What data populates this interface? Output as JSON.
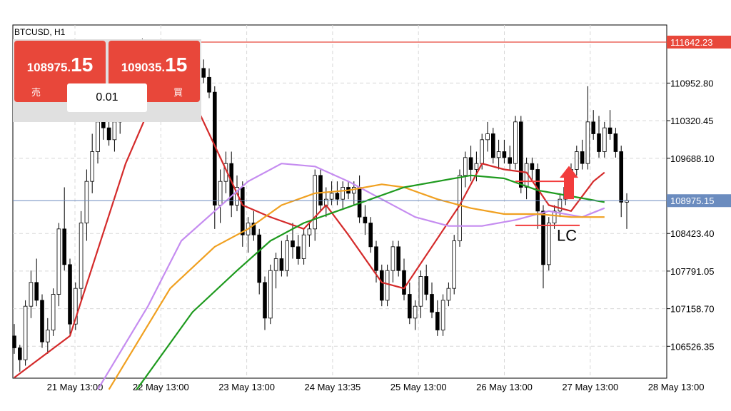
{
  "symbol": "BTCUSD, H1",
  "trade": {
    "sell_main": "108975.",
    "sell_big": "15",
    "sell_label": "売",
    "buy_main": "109035.",
    "buy_big": "15",
    "buy_label": "買",
    "lot": "0.01"
  },
  "annotation": "LC",
  "current_price": "108975.15",
  "level_price": "111642.23",
  "colors": {
    "bid_line": "#6b8cbf",
    "level_line": "#e8473a",
    "ma_red": "#d42a2a",
    "ma_green": "#1e9a1e",
    "ma_orange": "#f0a020",
    "ma_purple": "#c58cf0",
    "arrow": "#f23c3c"
  },
  "chart_data": {
    "type": "candlestick",
    "y_ticks": [
      "110952.80",
      "110320.45",
      "109688.10",
      "108423.40",
      "107791.05",
      "107158.70",
      "106526.35"
    ],
    "x_ticks": [
      "21 May 13:00",
      "22 May 13:00",
      "23 May 13:00",
      "24 May 13:35",
      "25 May 13:00",
      "26 May 13:00",
      "27 May 13:00",
      "28 May 13:00"
    ],
    "ylim": [
      105990,
      111930
    ],
    "level": 111642.23,
    "bid": 108975.15,
    "candles": [
      [
        106700,
        106900,
        106400,
        106500
      ],
      [
        106500,
        106550,
        106100,
        106300
      ],
      [
        106300,
        107300,
        106200,
        107200
      ],
      [
        107200,
        107800,
        107000,
        107600
      ],
      [
        107600,
        108000,
        107200,
        107300
      ],
      [
        107300,
        107400,
        106500,
        106600
      ],
      [
        106600,
        107000,
        106400,
        106800
      ],
      [
        106800,
        107500,
        106700,
        107400
      ],
      [
        107400,
        108600,
        107200,
        108500
      ],
      [
        108500,
        109200,
        107800,
        107900
      ],
      [
        107900,
        108000,
        106700,
        106900
      ],
      [
        106900,
        107600,
        106800,
        107500
      ],
      [
        107500,
        108800,
        107300,
        108600
      ],
      [
        108600,
        109500,
        108300,
        109300
      ],
      [
        109300,
        110100,
        109100,
        109800
      ],
      [
        109800,
        110600,
        109600,
        110300
      ],
      [
        110300,
        110700,
        110000,
        110200
      ],
      [
        110200,
        110500,
        109900,
        110000
      ],
      [
        110000,
        110400,
        109800,
        110300
      ],
      [
        110300,
        110700,
        110100,
        110500
      ],
      [
        110500,
        111100,
        110300,
        110900
      ],
      [
        110900,
        111300,
        110700,
        111100
      ],
      [
        111100,
        111500,
        110900,
        111300
      ],
      [
        111300,
        111700,
        111000,
        111500
      ],
      [
        111500,
        111600,
        110900,
        111000
      ],
      [
        111000,
        111300,
        110600,
        110700
      ],
      [
        110700,
        111000,
        110400,
        110900
      ],
      [
        110900,
        111300,
        110800,
        111200
      ],
      [
        111200,
        111300,
        110800,
        110900
      ],
      [
        110900,
        111200,
        110700,
        111100
      ],
      [
        111100,
        111250,
        110400,
        110600
      ],
      [
        110600,
        110900,
        110300,
        110800
      ],
      [
        110800,
        111100,
        110600,
        111000
      ],
      [
        111000,
        111300,
        110900,
        111200
      ],
      [
        111200,
        111350,
        110950,
        111050
      ],
      [
        111050,
        111200,
        110700,
        110800
      ],
      [
        110800,
        110900,
        108500,
        108900
      ],
      [
        108900,
        109500,
        108600,
        109300
      ],
      [
        109300,
        109800,
        109100,
        109600
      ],
      [
        109600,
        109800,
        108700,
        108900
      ],
      [
        108900,
        109400,
        108800,
        109200
      ],
      [
        109200,
        109300,
        108200,
        108400
      ],
      [
        108400,
        108700,
        108100,
        108600
      ],
      [
        108600,
        108800,
        108300,
        108400
      ],
      [
        108400,
        108500,
        107400,
        107600
      ],
      [
        107600,
        107700,
        106800,
        107000
      ],
      [
        107000,
        107900,
        106900,
        107800
      ],
      [
        107800,
        108100,
        107500,
        108000
      ],
      [
        108000,
        108300,
        107700,
        107800
      ],
      [
        107800,
        108400,
        107700,
        108300
      ],
      [
        108300,
        108600,
        108000,
        108200
      ],
      [
        108200,
        108400,
        107900,
        108000
      ],
      [
        108000,
        108500,
        107900,
        108400
      ],
      [
        108400,
        108600,
        108200,
        108500
      ],
      [
        108500,
        109500,
        108300,
        109400
      ],
      [
        109400,
        109500,
        108800,
        108900
      ],
      [
        108900,
        109200,
        108700,
        109000
      ],
      [
        109000,
        109300,
        108900,
        109100
      ],
      [
        109100,
        109300,
        108900,
        109000
      ],
      [
        109000,
        109300,
        108850,
        109200
      ],
      [
        109200,
        109300,
        109000,
        109100
      ],
      [
        109100,
        109300,
        108900,
        109200
      ],
      [
        109200,
        109400,
        108600,
        108700
      ],
      [
        108700,
        108900,
        108400,
        108600
      ],
      [
        108600,
        108700,
        108100,
        108200
      ],
      [
        108200,
        108300,
        107600,
        107800
      ],
      [
        107800,
        107900,
        107200,
        107300
      ],
      [
        107300,
        107900,
        107200,
        107800
      ],
      [
        107800,
        108300,
        107600,
        108200
      ],
      [
        108200,
        108300,
        107700,
        107800
      ],
      [
        107800,
        108000,
        107300,
        107400
      ],
      [
        107400,
        107600,
        106900,
        107000
      ],
      [
        107000,
        107300,
        106800,
        107200
      ],
      [
        107200,
        107800,
        107000,
        107700
      ],
      [
        107700,
        107900,
        107300,
        107400
      ],
      [
        107400,
        107600,
        107000,
        107100
      ],
      [
        107100,
        107300,
        106700,
        106800
      ],
      [
        106800,
        107400,
        106700,
        107300
      ],
      [
        107300,
        107600,
        107200,
        107500
      ],
      [
        107500,
        108400,
        107400,
        108300
      ],
      [
        108300,
        109500,
        108200,
        109400
      ],
      [
        109400,
        109800,
        109200,
        109700
      ],
      [
        109700,
        109900,
        109300,
        109500
      ],
      [
        109500,
        109800,
        109300,
        109600
      ],
      [
        109600,
        110100,
        109500,
        110000
      ],
      [
        110000,
        110300,
        109800,
        110100
      ],
      [
        110100,
        110200,
        109600,
        109700
      ],
      [
        109700,
        110000,
        109500,
        109800
      ],
      [
        109800,
        110000,
        109600,
        109700
      ],
      [
        109700,
        109900,
        109500,
        109600
      ],
      [
        109600,
        110400,
        109500,
        110300
      ],
      [
        110300,
        110400,
        109100,
        109200
      ],
      [
        109200,
        109700,
        109000,
        109600
      ],
      [
        109600,
        109700,
        109300,
        109500
      ],
      [
        109500,
        109600,
        108500,
        108800
      ],
      [
        108800,
        108900,
        107500,
        107900
      ],
      [
        107900,
        108700,
        107800,
        108600
      ],
      [
        108600,
        108900,
        108500,
        108800
      ],
      [
        108800,
        109100,
        108700,
        109000
      ],
      [
        109000,
        109300,
        108900,
        109200
      ],
      [
        109200,
        109600,
        109100,
        109500
      ],
      [
        109500,
        109900,
        109400,
        109800
      ],
      [
        109800,
        110000,
        109500,
        109600
      ],
      [
        109600,
        110900,
        109500,
        110300
      ],
      [
        110300,
        110500,
        110000,
        110100
      ],
      [
        110100,
        110400,
        109700,
        109800
      ],
      [
        109800,
        110300,
        109700,
        110200
      ],
      [
        110200,
        110500,
        110000,
        110100
      ],
      [
        110100,
        110200,
        109700,
        109800
      ],
      [
        109800,
        109900,
        108700,
        108950
      ],
      [
        108950,
        109100,
        108500,
        108980
      ]
    ],
    "series": [
      {
        "name": "",
        "color": "#d42a2a",
        "points": [
          [
            0,
            106000
          ],
          [
            10,
            106700
          ],
          [
            20,
            109600
          ],
          [
            26,
            110900
          ],
          [
            32,
            110700
          ],
          [
            36,
            109900
          ],
          [
            41,
            108900
          ],
          [
            46,
            108700
          ],
          [
            52,
            108500
          ],
          [
            56,
            108900
          ],
          [
            60,
            108400
          ],
          [
            66,
            107600
          ],
          [
            70,
            107500
          ],
          [
            75,
            108200
          ],
          [
            80,
            108900
          ],
          [
            84,
            109600
          ],
          [
            88,
            109500
          ],
          [
            92,
            109450
          ],
          [
            96,
            108900
          ],
          [
            100,
            108800
          ],
          [
            104,
            109300
          ],
          [
            106,
            109450
          ]
        ]
      },
      {
        "name": "",
        "color": "#c58cf0",
        "points": [
          [
            15,
            105800
          ],
          [
            24,
            107200
          ],
          [
            30,
            108300
          ],
          [
            36,
            108800
          ],
          [
            42,
            109300
          ],
          [
            48,
            109600
          ],
          [
            54,
            109550
          ],
          [
            60,
            109300
          ],
          [
            66,
            109000
          ],
          [
            72,
            108700
          ],
          [
            78,
            108550
          ],
          [
            84,
            108550
          ],
          [
            90,
            108650
          ],
          [
            96,
            108800
          ],
          [
            102,
            108700
          ],
          [
            106,
            108850
          ]
        ]
      },
      {
        "name": "",
        "color": "#f0a020",
        "points": [
          [
            17,
            105800
          ],
          [
            28,
            107500
          ],
          [
            36,
            108200
          ],
          [
            42,
            108500
          ],
          [
            48,
            108900
          ],
          [
            54,
            109100
          ],
          [
            60,
            109150
          ],
          [
            66,
            109250
          ],
          [
            70,
            109200
          ],
          [
            76,
            109000
          ],
          [
            82,
            108850
          ],
          [
            88,
            108750
          ],
          [
            94,
            108750
          ],
          [
            100,
            108700
          ],
          [
            106,
            108700
          ]
        ]
      },
      {
        "name": "",
        "color": "#1e9a1e",
        "points": [
          [
            22,
            105800
          ],
          [
            32,
            107100
          ],
          [
            40,
            107800
          ],
          [
            46,
            108300
          ],
          [
            52,
            108600
          ],
          [
            58,
            108800
          ],
          [
            64,
            109000
          ],
          [
            70,
            109200
          ],
          [
            76,
            109300
          ],
          [
            82,
            109400
          ],
          [
            88,
            109350
          ],
          [
            94,
            109150
          ],
          [
            100,
            109050
          ],
          [
            106,
            108950
          ]
        ]
      }
    ]
  }
}
